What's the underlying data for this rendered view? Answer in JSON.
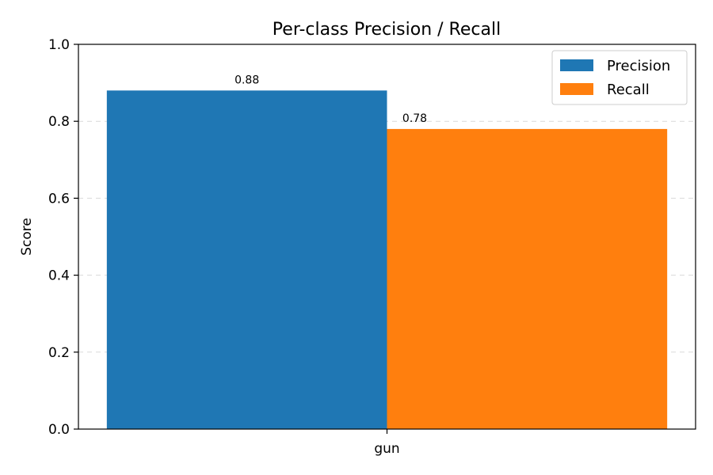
{
  "chart_data": {
    "type": "bar",
    "title": "Per-class Precision / Recall",
    "xlabel": "",
    "ylabel": "Score",
    "categories": [
      "gun"
    ],
    "series": [
      {
        "name": "Precision",
        "values": [
          0.88
        ],
        "color": "#1f77b4",
        "labels": [
          "0.88"
        ]
      },
      {
        "name": "Recall",
        "values": [
          0.78
        ],
        "color": "#ff7f0e",
        "labels": [
          "0.78"
        ]
      }
    ],
    "ylim": [
      0,
      1.0
    ],
    "yticks": [
      "0.0",
      "0.2",
      "0.4",
      "0.6",
      "0.8",
      "1.0"
    ],
    "grid": "y-dashed",
    "legend_position": "top-right"
  }
}
